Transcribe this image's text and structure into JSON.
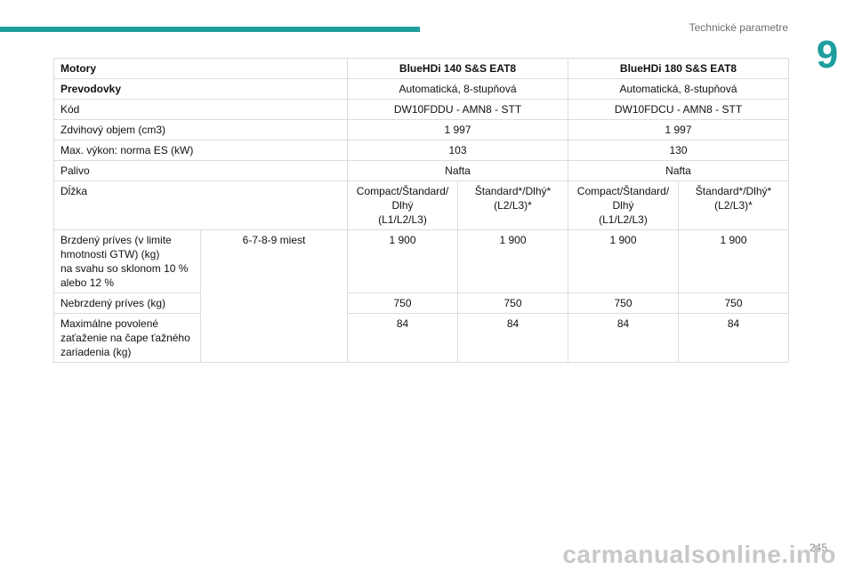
{
  "header": {
    "section_title": "Technické parametre",
    "chapter_number": "9",
    "accent_color": "#1f9e9e"
  },
  "table": {
    "header": {
      "label": "Motory",
      "col1": "BlueHDi 140 S&S EAT8",
      "col2": "BlueHDi 180 S&S EAT8"
    },
    "gearbox": {
      "label": "Prevodovky",
      "col1": "Automatická, 8-stupňová",
      "col2": "Automatická, 8-stupňová"
    },
    "code": {
      "label": "Kód",
      "col1": "DW10FDDU - AMN8 - STT",
      "col2": "DW10FDCU - AMN8 - STT"
    },
    "displacement": {
      "label": "Zdvihový objem (cm3)",
      "col1": "1 997",
      "col2": "1 997"
    },
    "power": {
      "label": "Max. výkon: norma ES (kW)",
      "col1": "103",
      "col2": "130"
    },
    "fuel": {
      "label": "Palivo",
      "col1": "Nafta",
      "col2": "Nafta"
    },
    "length": {
      "label": "Dĺžka",
      "a1": "Compact/Štandard/",
      "a2": "Dlhý",
      "a3": "(L1/L2/L3)",
      "b1": "Štandard*/Dlhý*",
      "b2": "(L2/L3)*",
      "c1": "Compact/Štandard/",
      "c2": "Dlhý",
      "c3": "(L1/L2/L3)",
      "d1": "Štandard*/Dlhý*",
      "d2": "(L2/L3)*"
    },
    "seats": "6-7-8-9 miest",
    "braked": {
      "l1": "Brzdený príves (v limite",
      "l2": "hmotnosti GTW) (kg)",
      "l3": "na svahu so sklonom 10 %",
      "l4": "alebo 12 %",
      "v1": "1 900",
      "v2": "1 900",
      "v3": "1 900",
      "v4": "1 900"
    },
    "unbraked": {
      "label": "Nebrzdený príves (kg)",
      "v1": "750",
      "v2": "750",
      "v3": "750",
      "v4": "750"
    },
    "tow": {
      "l1": "Maximálne povolené",
      "l2": "zaťaženie na čape ťažného",
      "l3": "zariadenia (kg)",
      "v1": "84",
      "v2": "84",
      "v3": "84",
      "v4": "84"
    }
  },
  "footer": {
    "page_number": "245",
    "watermark": "carmanualsonline.info"
  }
}
